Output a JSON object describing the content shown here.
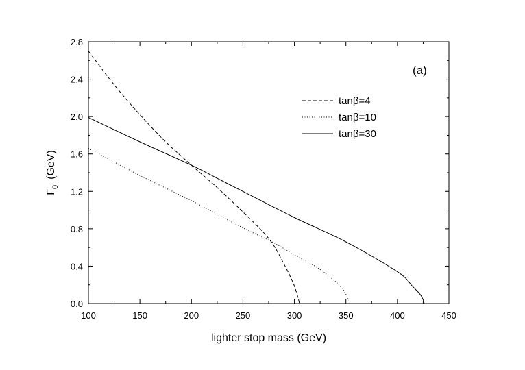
{
  "chart_data": {
    "type": "line",
    "panel_label": "(a)",
    "xlabel": "lighter stop mass  (GeV)",
    "ylabel_symbol": "Γ",
    "ylabel_subscript": "0",
    "ylabel_unit": "(GeV)",
    "xlim": [
      100,
      450
    ],
    "ylim": [
      0.0,
      2.8
    ],
    "x_ticks": [
      "100",
      "150",
      "200",
      "250",
      "300",
      "350",
      "400",
      "450"
    ],
    "y_ticks": [
      "0.0",
      "0.4",
      "0.8",
      "1.2",
      "1.6",
      "2.0",
      "2.4",
      "2.8"
    ],
    "grid": false,
    "legend_position": "upper-right",
    "colors": {
      "line": "#000000",
      "background": "#ffffff"
    },
    "series": [
      {
        "name": "tanβ=4",
        "style": "dashed",
        "points": [
          [
            100,
            2.7
          ],
          [
            125,
            2.34
          ],
          [
            150,
            2.02
          ],
          [
            175,
            1.73
          ],
          [
            200,
            1.48
          ],
          [
            225,
            1.24
          ],
          [
            250,
            0.98
          ],
          [
            270,
            0.76
          ],
          [
            280,
            0.62
          ],
          [
            290,
            0.42
          ],
          [
            298,
            0.24
          ],
          [
            302,
            0.12
          ],
          [
            304,
            0.04
          ],
          [
            305,
            0.0
          ]
        ]
      },
      {
        "name": "tanβ=10",
        "style": "dotted",
        "points": [
          [
            100,
            1.66
          ],
          [
            150,
            1.37
          ],
          [
            200,
            1.1
          ],
          [
            250,
            0.81
          ],
          [
            280,
            0.65
          ],
          [
            300,
            0.52
          ],
          [
            320,
            0.4
          ],
          [
            335,
            0.28
          ],
          [
            345,
            0.18
          ],
          [
            350,
            0.1
          ],
          [
            352,
            0.05
          ],
          [
            353,
            0.0
          ]
        ]
      },
      {
        "name": "tanβ=30",
        "style": "solid",
        "points": [
          [
            100,
            1.99
          ],
          [
            150,
            1.73
          ],
          [
            200,
            1.48
          ],
          [
            225,
            1.34
          ],
          [
            250,
            1.2
          ],
          [
            300,
            0.92
          ],
          [
            350,
            0.66
          ],
          [
            400,
            0.34
          ],
          [
            415,
            0.18
          ],
          [
            422,
            0.1
          ],
          [
            425,
            0.04
          ],
          [
            426,
            0.0
          ]
        ]
      }
    ]
  }
}
